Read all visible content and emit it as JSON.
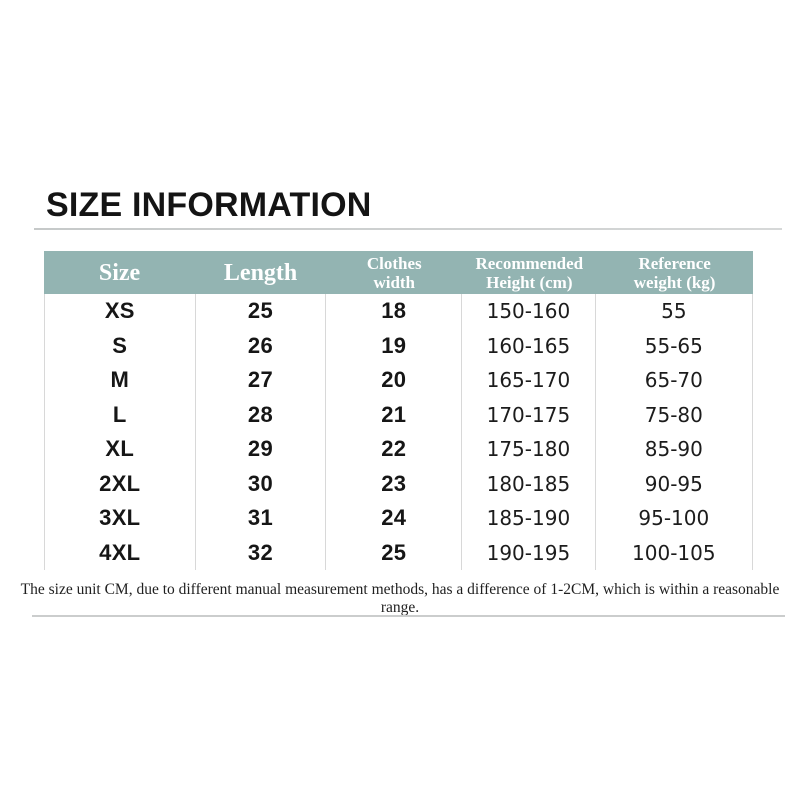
{
  "page": {
    "title": "SIZE INFORMATION"
  },
  "colors": {
    "header_background": "#93b4b2",
    "header_text": "#ffffff",
    "body_text": "#161616",
    "divider": "#d8d8d8",
    "rule": "#cbcdcd"
  },
  "size_table": {
    "columns": [
      {
        "id": "size",
        "lines": [
          "Size"
        ]
      },
      {
        "id": "length",
        "lines": [
          "Length"
        ]
      },
      {
        "id": "clothes_width",
        "lines": [
          "Clothes",
          "width"
        ]
      },
      {
        "id": "recommended_height",
        "lines": [
          "Recommended",
          "Height (cm)"
        ]
      },
      {
        "id": "reference_weight",
        "lines": [
          "Reference",
          "weight (kg)"
        ]
      }
    ],
    "rows": [
      {
        "size": "XS",
        "length": "25",
        "clothes_width": "18",
        "height": "150-160",
        "weight": "55"
      },
      {
        "size": "S",
        "length": "26",
        "clothes_width": "19",
        "height": "160-165",
        "weight": "55-65"
      },
      {
        "size": "M",
        "length": "27",
        "clothes_width": "20",
        "height": "165-170",
        "weight": "65-70"
      },
      {
        "size": "L",
        "length": "28",
        "clothes_width": "21",
        "height": "170-175",
        "weight": "75-80"
      },
      {
        "size": "XL",
        "length": "29",
        "clothes_width": "22",
        "height": "175-180",
        "weight": "85-90"
      },
      {
        "size": "2XL",
        "length": "30",
        "clothes_width": "23",
        "height": "180-185",
        "weight": "90-95"
      },
      {
        "size": "3XL",
        "length": "31",
        "clothes_width": "24",
        "height": "185-190",
        "weight": "95-100"
      },
      {
        "size": "4XL",
        "length": "32",
        "clothes_width": "25",
        "height": "190-195",
        "weight": "100-105"
      }
    ]
  },
  "footnote": {
    "text": "The size unit CM, due to different manual measurement methods, has a difference of 1-2CM, which is within a reasonable range."
  }
}
